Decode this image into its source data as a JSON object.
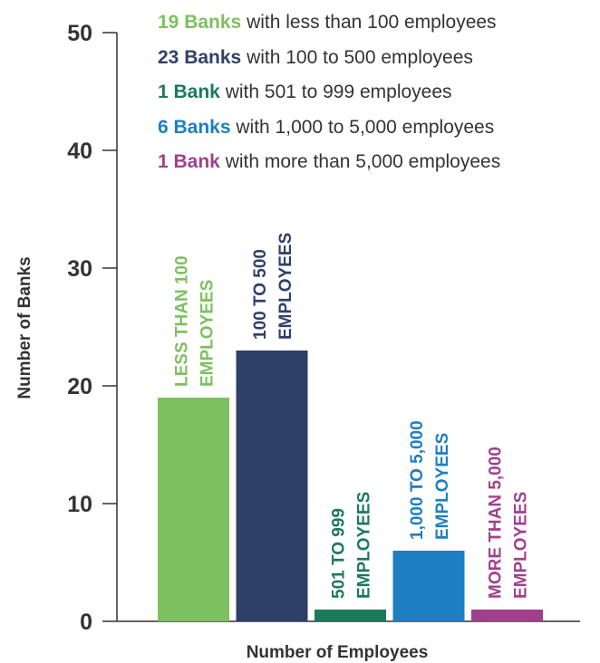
{
  "chart_data": {
    "type": "bar",
    "categories": [
      "LESS THAN 100 EMPLOYEES",
      "100 TO 500 EMPLOYEES",
      "501 TO 999 EMPLOYEES",
      "1,000 TO 5,000 EMPLOYEES",
      "MORE THAN 5,000 EMPLOYEES"
    ],
    "category_label_lines": [
      [
        "LESS THAN 100",
        "EMPLOYEES"
      ],
      [
        "100 TO 500",
        "EMPLOYEES"
      ],
      [
        "501 TO 999",
        "EMPLOYEES"
      ],
      [
        "1,000 TO 5,000",
        "EMPLOYEES"
      ],
      [
        "MORE THAN 5,000",
        "EMPLOYEES"
      ]
    ],
    "values": [
      19,
      23,
      1,
      6,
      1
    ],
    "colors": [
      "#7dc05f",
      "#2f4068",
      "#1b7a5a",
      "#1d7fc2",
      "#a0408d"
    ],
    "xlabel": "Number of Employees",
    "ylabel": "Number of Banks",
    "ylim": [
      0,
      50
    ],
    "yticks": [
      0,
      10,
      20,
      30,
      40,
      50
    ],
    "grid": false
  },
  "legend": [
    {
      "count": "19 Banks",
      "text": " with less than 100 employees",
      "color": "#7dc05f"
    },
    {
      "count": "23 Banks",
      "text": " with 100 to 500 employees",
      "color": "#2f4068"
    },
    {
      "count": "1 Bank",
      "text": " with 501 to 999 employees",
      "color": "#1b7a5a"
    },
    {
      "count": "6 Banks",
      "text": " with 1,000 to 5,000 employees",
      "color": "#1d7fc2"
    },
    {
      "count": "1 Bank",
      "text": " with more than 5,000 employees",
      "color": "#a0408d"
    }
  ]
}
